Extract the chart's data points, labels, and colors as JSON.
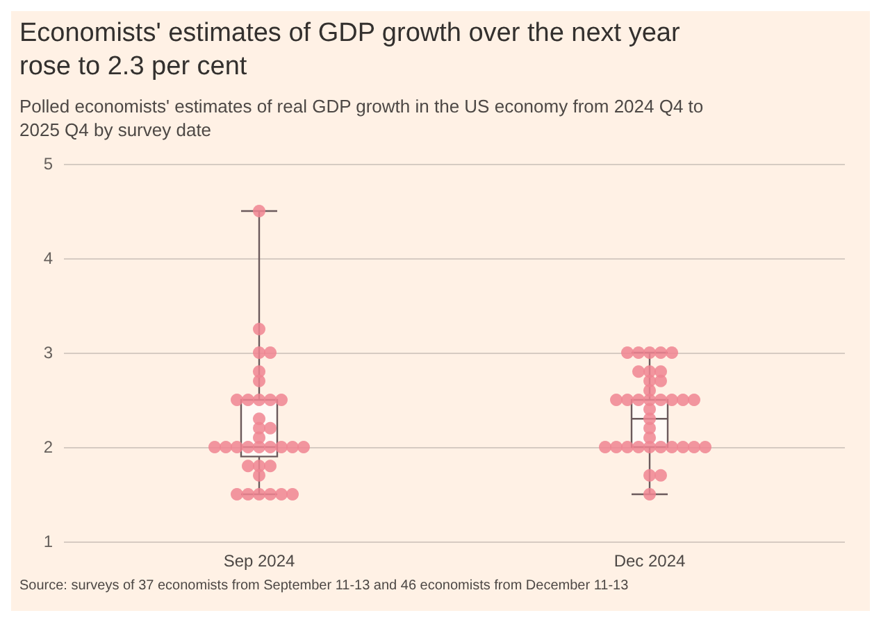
{
  "chart_data": {
    "type": "box",
    "title": "Economists' estimates of GDP growth over the next year rose to 2.3 per cent",
    "subtitle": "Polled economists' estimates of real GDP growth in the US economy from 2024 Q4 to 2025 Q4 by survey date",
    "annotations": [
      "Source: surveys of 37 economists from September 11-13 and 46 economists from December 11-13"
    ],
    "categories": [
      "Sep 2024",
      "Dec 2024"
    ],
    "boxes": [
      {
        "low": 1.5,
        "q1": 1.9,
        "median": 2.0,
        "q3": 2.5,
        "high": 4.5
      },
      {
        "low": 1.5,
        "q1": 2.0,
        "median": 2.3,
        "q3": 2.5,
        "high": 3.0
      }
    ],
    "series": [
      {
        "type": "scatter",
        "color": "#f08592",
        "x": [
          "Sep 2024",
          "Sep 2024",
          "Sep 2024",
          "Sep 2024",
          "Sep 2024",
          "Sep 2024",
          "Sep 2024",
          "Sep 2024",
          "Sep 2024",
          "Sep 2024",
          "Sep 2024",
          "Sep 2024",
          "Sep 2024",
          "Sep 2024",
          "Sep 2024",
          "Sep 2024",
          "Sep 2024",
          "Sep 2024",
          "Sep 2024",
          "Sep 2024",
          "Sep 2024",
          "Sep 2024",
          "Sep 2024",
          "Sep 2024",
          "Sep 2024",
          "Sep 2024",
          "Sep 2024",
          "Sep 2024",
          "Sep 2024",
          "Sep 2024",
          "Sep 2024",
          "Sep 2024",
          "Sep 2024",
          "Sep 2024",
          "Dec 2024",
          "Dec 2024",
          "Dec 2024",
          "Dec 2024",
          "Dec 2024",
          "Dec 2024",
          "Dec 2024",
          "Dec 2024",
          "Dec 2024",
          "Dec 2024",
          "Dec 2024",
          "Dec 2024",
          "Dec 2024",
          "Dec 2024",
          "Dec 2024",
          "Dec 2024",
          "Dec 2024",
          "Dec 2024",
          "Dec 2024",
          "Dec 2024",
          "Dec 2024",
          "Dec 2024",
          "Dec 2024",
          "Dec 2024",
          "Dec 2024",
          "Dec 2024",
          "Dec 2024",
          "Dec 2024",
          "Dec 2024",
          "Dec 2024",
          "Dec 2024",
          "Dec 2024",
          "Dec 2024",
          "Dec 2024",
          "Dec 2024",
          "Dec 2024"
        ],
        "values": [
          4.5,
          3.25,
          3,
          3,
          2.8,
          2.7,
          2.5,
          2.5,
          2.5,
          2.5,
          2.5,
          2.3,
          2.2,
          2.2,
          2.1,
          2,
          2,
          2,
          2,
          2,
          2,
          2,
          2,
          2,
          1.8,
          1.8,
          1.8,
          1.7,
          1.5,
          1.5,
          1.5,
          1.5,
          1.5,
          1.5,
          3,
          3,
          3,
          3,
          3,
          2.8,
          2.8,
          2.8,
          2.7,
          2.7,
          2.6,
          2.5,
          2.5,
          2.5,
          2.5,
          2.5,
          2.5,
          2.5,
          2.5,
          2.4,
          2.3,
          2.2,
          2.1,
          2,
          2,
          2,
          2,
          2,
          2,
          2,
          2,
          2,
          2,
          1.7,
          1.7,
          1.5
        ]
      }
    ],
    "ylim": [
      1,
      5
    ],
    "yticks": [
      1,
      2,
      3,
      4,
      5
    ],
    "grid": "y",
    "marker": "circle"
  }
}
